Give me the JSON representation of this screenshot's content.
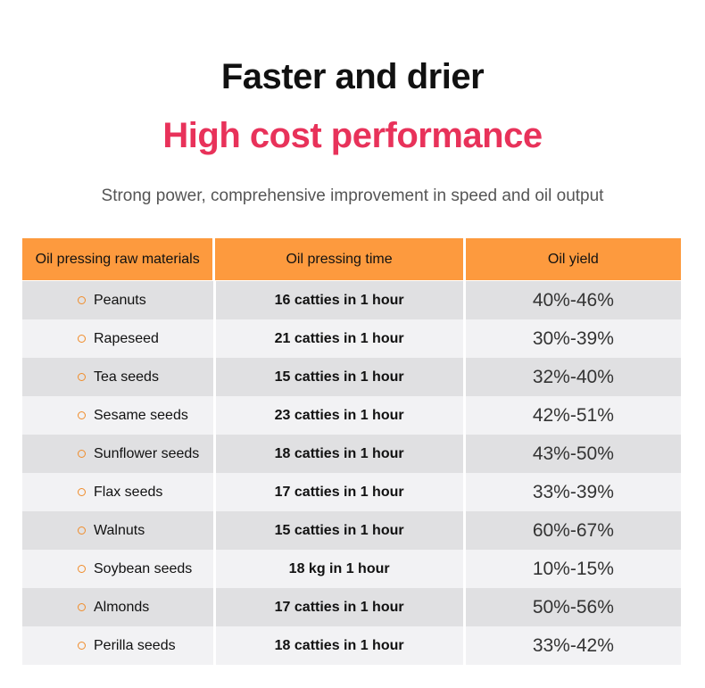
{
  "header": {
    "title": "Faster and drier",
    "subtitle": "High cost performance",
    "tagline": "Strong power, comprehensive improvement in speed and oil output"
  },
  "colors": {
    "accent_title": "#e8325a",
    "header_bg": "#fd9a3e",
    "bullet": "#f08c2a"
  },
  "table": {
    "columns": [
      "Oil pressing raw materials",
      "Oil pressing time",
      "Oil yield"
    ],
    "rows": [
      {
        "material": "Peanuts",
        "time": "16 catties in 1 hour",
        "yield": "40%-46%"
      },
      {
        "material": "Rapeseed",
        "time": "21 catties in 1 hour",
        "yield": "30%-39%"
      },
      {
        "material": "Tea seeds",
        "time": "15 catties in 1 hour",
        "yield": "32%-40%"
      },
      {
        "material": "Sesame seeds",
        "time": "23 catties in 1 hour",
        "yield": "42%-51%"
      },
      {
        "material": "Sunflower seeds",
        "time": "18 catties in 1 hour",
        "yield": "43%-50%"
      },
      {
        "material": "Flax seeds",
        "time": "17 catties in 1 hour",
        "yield": "33%-39%"
      },
      {
        "material": "Walnuts",
        "time": "15 catties in 1 hour",
        "yield": "60%-67%"
      },
      {
        "material": "Soybean seeds",
        "time": "18 kg in 1 hour",
        "yield": "10%-15%"
      },
      {
        "material": "Almonds",
        "time": "17 catties in 1 hour",
        "yield": "50%-56%"
      },
      {
        "material": "Perilla seeds",
        "time": "18 catties in 1 hour",
        "yield": "33%-42%"
      }
    ]
  }
}
